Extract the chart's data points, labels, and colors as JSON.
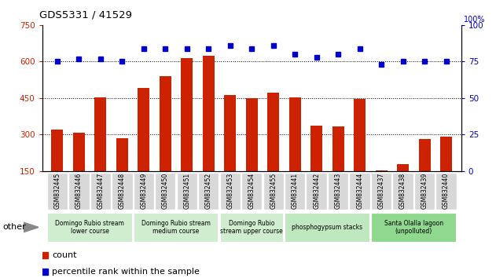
{
  "title": "GDS5331 / 41529",
  "samples": [
    "GSM832445",
    "GSM832446",
    "GSM832447",
    "GSM832448",
    "GSM832449",
    "GSM832450",
    "GSM832451",
    "GSM832452",
    "GSM832453",
    "GSM832454",
    "GSM832455",
    "GSM832441",
    "GSM832442",
    "GSM832443",
    "GSM832444",
    "GSM832437",
    "GSM832438",
    "GSM832439",
    "GSM832440"
  ],
  "counts": [
    320,
    308,
    452,
    285,
    490,
    540,
    615,
    625,
    462,
    450,
    472,
    452,
    335,
    332,
    447,
    152,
    178,
    283,
    290
  ],
  "percentile_ranks": [
    75,
    77,
    77,
    75,
    84,
    84,
    84,
    84,
    86,
    84,
    86,
    80,
    78,
    80,
    84,
    73,
    75,
    75,
    75
  ],
  "groups": [
    {
      "label": "Domingo Rubio stream\nlower course",
      "start": 0,
      "end": 4,
      "color": "#d0edd0"
    },
    {
      "label": "Domingo Rubio stream\nmedium course",
      "start": 4,
      "end": 8,
      "color": "#d0edd0"
    },
    {
      "label": "Domingo Rubio\nstream upper course",
      "start": 8,
      "end": 11,
      "color": "#d0edd0"
    },
    {
      "label": "phosphogypsum stacks",
      "start": 11,
      "end": 15,
      "color": "#c0e8c0"
    },
    {
      "label": "Santa Olalla lagoon\n(unpolluted)",
      "start": 15,
      "end": 19,
      "color": "#90d890"
    }
  ],
  "bar_color": "#cc2200",
  "dot_color": "#0000cc",
  "ylim_left": [
    150,
    750
  ],
  "ylim_right": [
    0,
    100
  ],
  "yticks_left": [
    150,
    300,
    450,
    600,
    750
  ],
  "yticks_right": [
    0,
    25,
    50,
    75,
    100
  ],
  "grid_lines": [
    300,
    450,
    600
  ],
  "tick_label_color_left": "#cc2200",
  "tick_label_color_right": "#0000cc",
  "xtick_bg": "#d8d8d8"
}
